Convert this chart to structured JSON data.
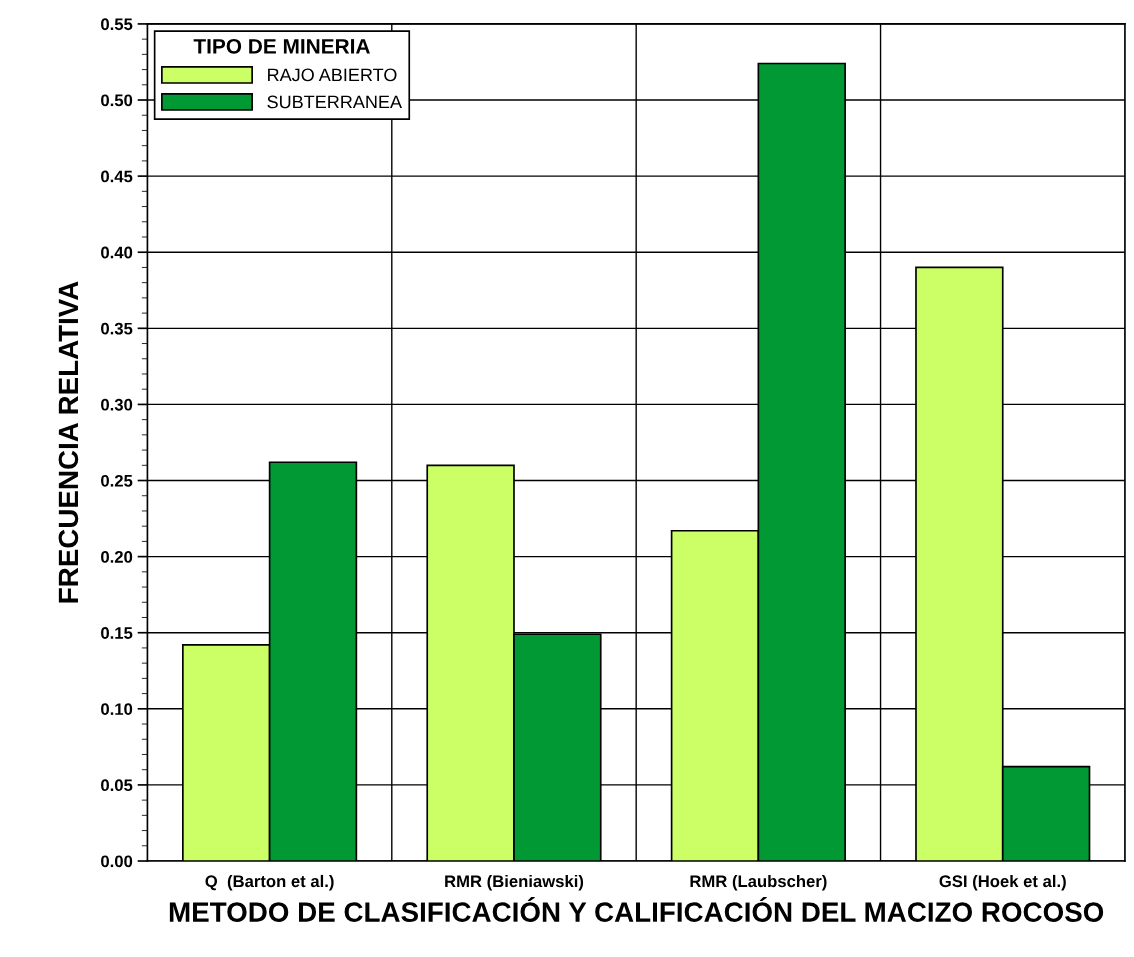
{
  "chart_data": {
    "type": "bar",
    "xlabel": "METODO DE CLASIFICACIÓN Y CALIFICACIÓN DEL MACIZO ROCOSO",
    "ylabel": "FRECUENCIA RELATIVA",
    "legend_title": "TIPO DE MINERIA",
    "categories": [
      "Q  (Barton et al.)",
      "RMR (Bieniawski)",
      "RMR (Laubscher)",
      "GSI (Hoek et al.)"
    ],
    "series": [
      {
        "name": "RAJO ABIERTO",
        "color": "#ccff66",
        "values": [
          0.142,
          0.26,
          0.217,
          0.39
        ]
      },
      {
        "name": "SUBTERRANEA",
        "color": "#009933",
        "values": [
          0.262,
          0.149,
          0.524,
          0.062
        ]
      }
    ],
    "ylim": [
      0,
      0.55
    ],
    "yticks": [
      {
        "value": 0,
        "label": "0.00"
      },
      {
        "value": 0.05,
        "label": "0.05"
      },
      {
        "value": 0.1,
        "label": "0.10"
      },
      {
        "value": 0.15,
        "label": "0.15"
      },
      {
        "value": 0.2,
        "label": "0.20"
      },
      {
        "value": 0.25,
        "label": "0.25"
      },
      {
        "value": 0.3,
        "label": "0.30"
      },
      {
        "value": 0.35,
        "label": "0.35"
      },
      {
        "value": 0.4,
        "label": "0.40"
      },
      {
        "value": 0.45,
        "label": "0.45"
      },
      {
        "value": 0.5,
        "label": "0.50"
      },
      {
        "value": 0.55,
        "label": "0.55"
      }
    ],
    "grid": true,
    "legend": "top left"
  }
}
